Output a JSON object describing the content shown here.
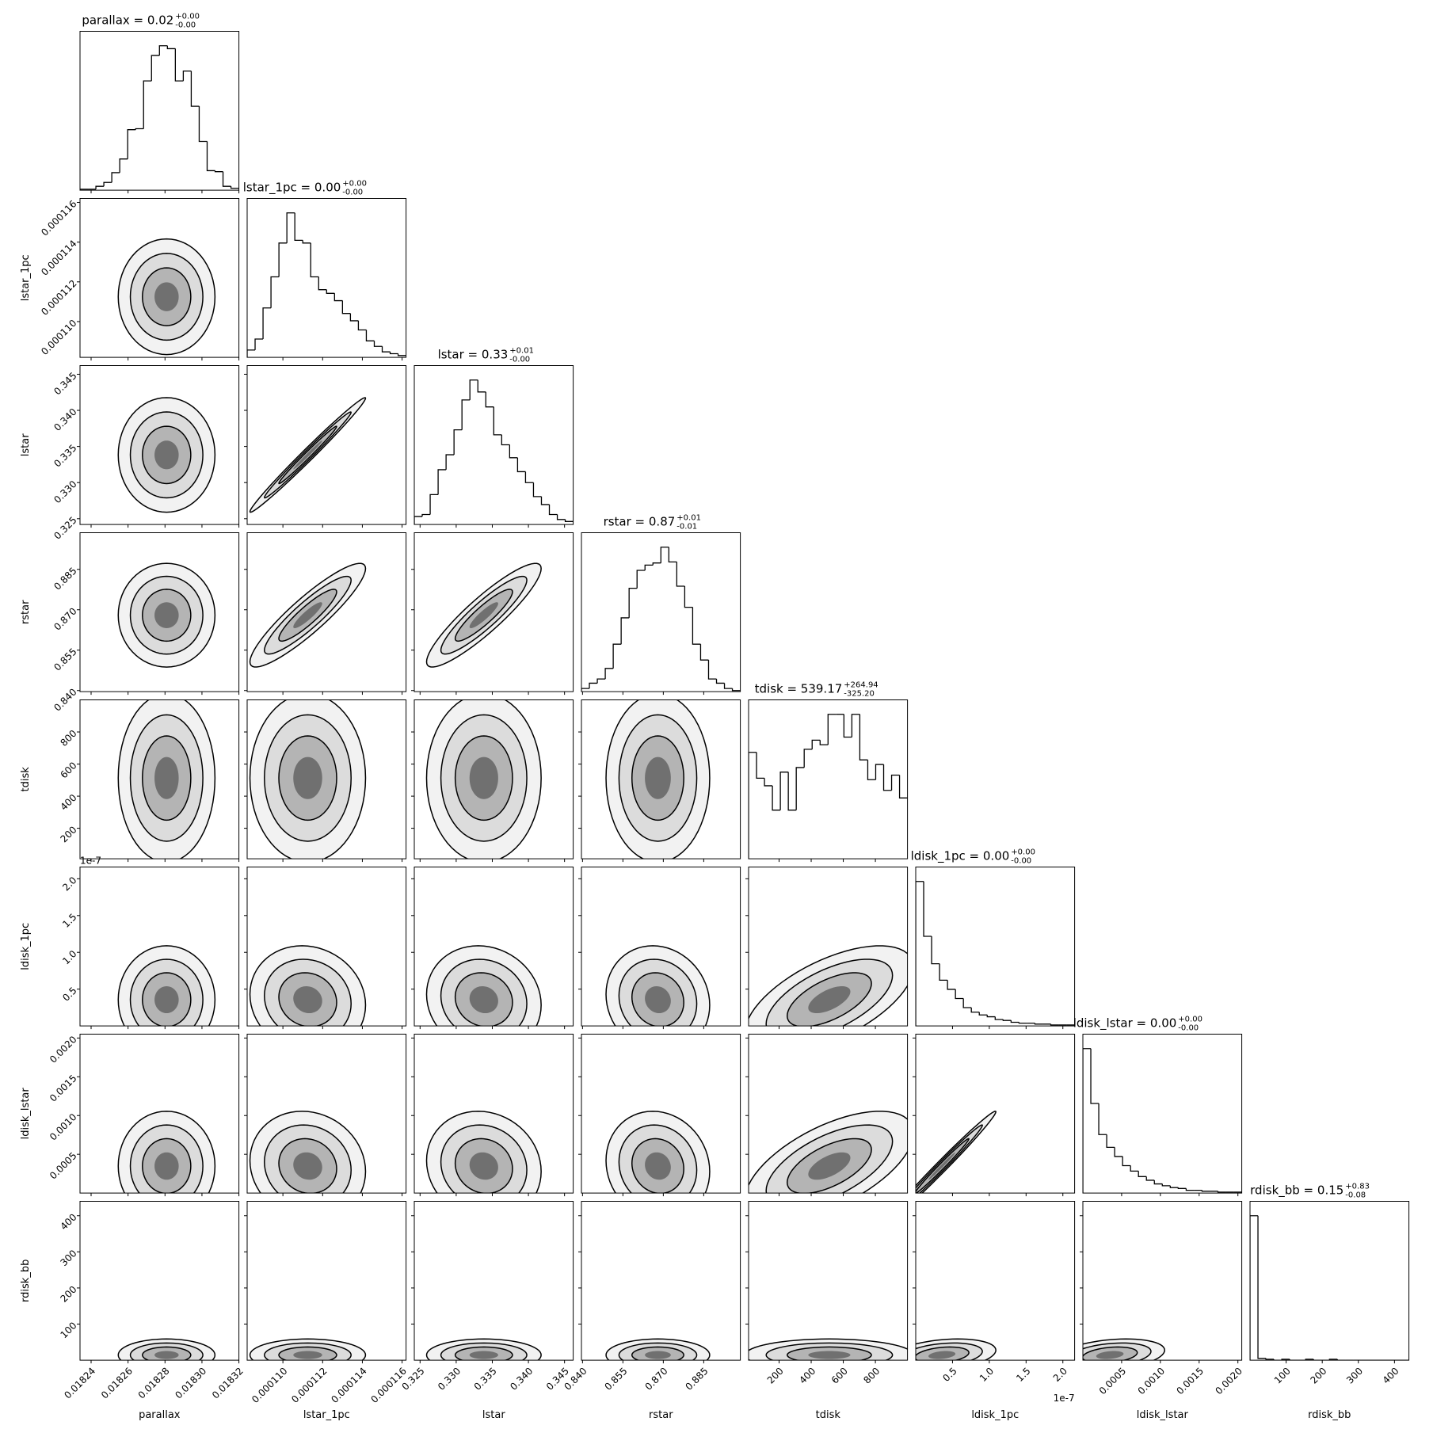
{
  "chart_data": {
    "type": "corner",
    "color": "#000000",
    "parameters": [
      {
        "name": "parallax",
        "title": "parallax = 0.02",
        "upper": "+0.00",
        "lower": "-0.00",
        "lim": [
          0.018234,
          0.01832
        ],
        "ticks": [
          0.01824,
          0.01826,
          0.01828,
          {
            "value": 0.0183,
            "label": "0.01830"
          },
          0.01832
        ],
        "bins": [
          0.018234,
          0.0182383,
          0.0182426,
          0.0182469,
          0.0182512,
          0.0182555,
          0.0182598,
          0.0182641,
          0.0182684,
          0.0182727,
          0.018277,
          0.0182813,
          0.0182856,
          0.0182899,
          0.0182942,
          0.0182985,
          0.0183028,
          0.0183071,
          0.0183114,
          0.0183157,
          0.01832
        ],
        "counts": [
          1,
          1,
          4,
          8,
          18,
          32,
          62,
          63,
          112,
          138,
          148,
          145,
          112,
          122,
          86,
          50,
          20,
          19,
          4,
          2
        ]
      },
      {
        "name": "lstar_1pc",
        "title": "lstar_1pc = 0.00",
        "upper": "+0.00",
        "lower": "-0.00",
        "lim": [
          0.0001082,
          0.0001162
        ],
        "ticks": [
          {
            "value": 0.00011,
            "label": "0.000110"
          },
          {
            "value": 0.000112,
            "label": "0.000112"
          },
          {
            "value": 0.000114,
            "label": "0.000114"
          },
          {
            "value": 0.000116,
            "label": "0.000116"
          }
        ],
        "bins": [
          0.0001082,
          0.0001086,
          0.000109,
          0.0001094,
          0.0001098,
          0.0001102,
          0.0001106,
          0.000111,
          0.0001114,
          0.0001118,
          0.0001122,
          0.0001126,
          0.000113,
          0.0001134,
          0.0001138,
          0.0001142,
          0.0001146,
          0.000115,
          0.0001154,
          0.0001158,
          0.0001162
        ],
        "counts": [
          8,
          20,
          54,
          88,
          125,
          158,
          128,
          125,
          88,
          74,
          70,
          62,
          48,
          40,
          30,
          18,
          12,
          6,
          4,
          2
        ]
      },
      {
        "name": "lstar",
        "title": "lstar = 0.33",
        "upper": "+0.01",
        "lower": "-0.00",
        "lim": [
          0.3242,
          0.3462
        ],
        "ticks": [
          0.325,
          {
            "value": 0.33,
            "label": "0.330"
          },
          0.335,
          {
            "value": 0.34,
            "label": "0.340"
          },
          0.345
        ],
        "bins": [
          0.3242,
          0.3253,
          0.3264,
          0.3275,
          0.3286,
          0.3297,
          0.3308,
          0.3319,
          0.333,
          0.3341,
          0.3352,
          0.3363,
          0.3374,
          0.3385,
          0.3396,
          0.3407,
          0.3418,
          0.3429,
          0.344,
          0.3451,
          0.3462
        ],
        "counts": [
          8,
          10,
          30,
          55,
          70,
          95,
          125,
          145,
          133,
          118,
          90,
          80,
          67,
          53,
          42,
          28,
          20,
          10,
          5,
          3
        ]
      },
      {
        "name": "rstar",
        "title": "rstar = 0.87",
        "upper": "+0.01",
        "lower": "-0.01",
        "lim": [
          0.8396,
          0.8986
        ],
        "ticks": [
          {
            "value": 0.84,
            "label": "0.840"
          },
          0.855,
          {
            "value": 0.87,
            "label": "0.870"
          },
          0.885
        ],
        "bins": [
          0.8396,
          0.84255,
          0.8455,
          0.84845,
          0.8514,
          0.85435,
          0.8573,
          0.86025,
          0.8632,
          0.86615,
          0.8691,
          0.87205,
          0.875,
          0.87795,
          0.8809,
          0.88385,
          0.8868,
          0.88975,
          0.8927,
          0.89565,
          0.8986
        ],
        "counts": [
          3,
          8,
          12,
          22,
          45,
          70,
          98,
          115,
          120,
          122,
          137,
          123,
          100,
          80,
          45,
          30,
          12,
          8,
          3,
          1
        ]
      },
      {
        "name": "tdisk",
        "title": "tdisk = 539.17",
        "upper": "+264.94",
        "lower": "-325.20",
        "lim": [
          10,
          1000
        ],
        "ticks": [
          200,
          400,
          600,
          800
        ],
        "bins": [
          10,
          59.5,
          109,
          158.5,
          208,
          257.5,
          307,
          356.5,
          406,
          455.5,
          505,
          554.5,
          604,
          653.5,
          703,
          752.5,
          802,
          851.5,
          901,
          950.5,
          1000
        ],
        "counts": [
          70,
          53,
          48,
          32,
          57,
          32,
          60,
          72,
          78,
          75,
          95,
          95,
          80,
          95,
          65,
          52,
          62,
          45,
          55,
          40
        ]
      },
      {
        "name": "ldisk_1pc",
        "title": "ldisk_1pc = 0.00",
        "upper": "+0.00",
        "lower": "-0.00",
        "lim": [
          0,
          2.16e-07
        ],
        "offset": "1e-7",
        "ticks": [
          {
            "value": 5e-08,
            "label": "0.5"
          },
          {
            "value": 1e-07,
            "label": "1.0"
          },
          {
            "value": 1.5e-07,
            "label": "1.5"
          },
          {
            "value": 2e-07,
            "label": "2.0"
          }
        ],
        "bins": [
          0,
          1.08e-08,
          2.16e-08,
          3.24e-08,
          4.32e-08,
          5.4e-08,
          6.48e-08,
          7.56e-08,
          8.64e-08,
          9.72e-08,
          1.08e-07,
          1.188e-07,
          1.296e-07,
          1.404e-07,
          1.512e-07,
          1.62e-07,
          1.728e-07,
          1.836e-07,
          1.944e-07,
          2.052e-07,
          2.16e-07
        ],
        "counts": [
          158,
          98,
          68,
          50,
          40,
          30,
          20,
          15,
          12,
          10,
          7,
          6,
          4,
          3,
          3,
          2,
          2,
          1,
          1,
          1
        ]
      },
      {
        "name": "ldisk_lstar",
        "title": "ldisk_lstar = 0.00",
        "upper": "+0.00",
        "lower": "-0.00",
        "lim": [
          0,
          0.00205
        ],
        "ticks": [
          0.0005,
          {
            "value": 0.001,
            "label": "0.0010"
          },
          0.0015,
          {
            "value": 0.002,
            "label": "0.0020"
          }
        ],
        "bins": [
          0,
          0.0001025,
          0.000205,
          0.0003075,
          0.00041,
          0.0005125,
          0.000615,
          0.0007175,
          0.00082,
          0.0009225,
          0.001025,
          0.0011275,
          0.00123,
          0.0013325,
          0.001435,
          0.0015375,
          0.00164,
          0.0017425,
          0.001845,
          0.0019475,
          0.00205
        ],
        "counts": [
          158,
          98,
          64,
          50,
          40,
          30,
          24,
          18,
          14,
          10,
          8,
          6,
          5,
          3,
          3,
          2,
          2,
          1,
          1,
          1
        ]
      },
      {
        "name": "rdisk_bb",
        "title": "rdisk_bb = 0.15",
        "upper": "+0.83",
        "lower": "-0.08",
        "lim": [
          0,
          440
        ],
        "ticks": [
          100,
          200,
          300,
          400
        ],
        "bins": [
          0,
          22,
          44,
          66,
          88,
          110,
          132,
          154,
          176,
          198,
          220,
          242,
          264,
          286,
          308,
          330,
          352,
          374,
          396,
          418,
          440
        ],
        "counts": [
          158,
          2,
          1,
          0,
          1,
          0,
          0,
          1,
          0,
          0,
          1,
          0,
          0,
          0,
          0,
          0,
          0,
          0,
          0,
          0
        ]
      }
    ],
    "correlation": [
      [],
      [
        0.0
      ],
      [
        0.0,
        0.99
      ],
      [
        0.0,
        0.9,
        0.9
      ],
      [
        0.0,
        0.0,
        0.0,
        0.0
      ],
      [
        0.0,
        -0.1,
        -0.1,
        -0.1,
        0.6
      ],
      [
        0.0,
        -0.1,
        -0.1,
        -0.1,
        0.6,
        0.99
      ],
      [
        0.0,
        0.0,
        0.0,
        0.0,
        0.0,
        0.3,
        0.3
      ]
    ]
  }
}
